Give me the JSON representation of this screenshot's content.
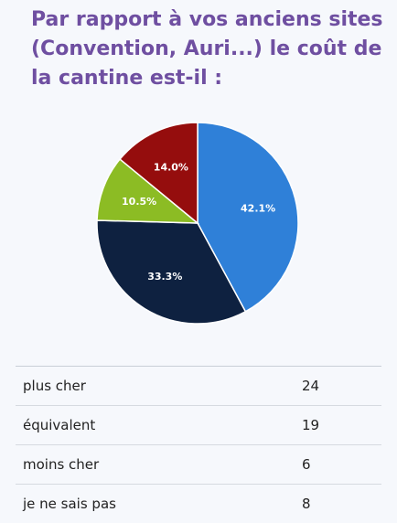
{
  "title": "Par rapport à vos anciens sites (Convention, Auri...) le coût de la cantine est-il :",
  "chart_data": {
    "type": "pie",
    "title": "Par rapport à vos anciens sites (Convention, Auri...) le coût de la cantine est-il :",
    "slices": [
      {
        "name": "plus cher",
        "value": 24,
        "percent_label": "42.1%",
        "color": "#2f80d8"
      },
      {
        "name": "équivalent",
        "value": 19,
        "percent_label": "33.3%",
        "color": "#0e2140"
      },
      {
        "name": "moins cher",
        "value": 6,
        "percent_label": "10.5%",
        "color": "#8cbc24"
      },
      {
        "name": "je ne sais pas",
        "value": 8,
        "percent_label": "14.0%",
        "color": "#950d0d"
      }
    ]
  },
  "table": {
    "rows": [
      {
        "label": "plus cher",
        "count": "24"
      },
      {
        "label": "équivalent",
        "count": "19"
      },
      {
        "label": "moins cher",
        "count": "6"
      },
      {
        "label": "je ne sais pas",
        "count": "8"
      }
    ]
  }
}
